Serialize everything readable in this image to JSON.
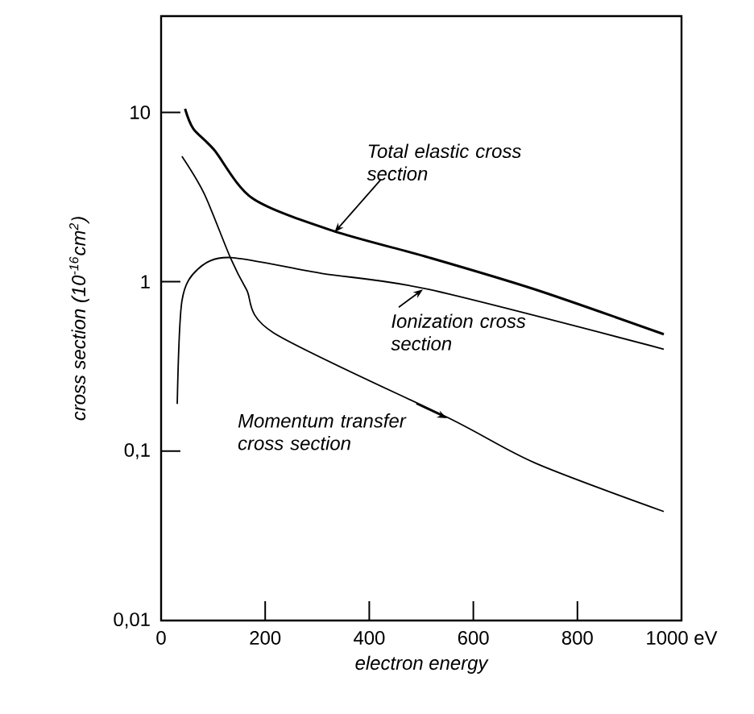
{
  "chart_data": {
    "type": "line",
    "log": "y",
    "xlabel": "electron energy",
    "ylabel": "cross section  (10$^{-16}$cm$^{2}$)",
    "xlim": [
      0,
      1000
    ],
    "ylim": [
      0.01,
      37
    ],
    "xticks": [
      0,
      200,
      400,
      600,
      800,
      {
        "value": 1000,
        "label": "1000 eV"
      }
    ],
    "yticks": [
      {
        "value": 0.01,
        "label": "0,01"
      },
      {
        "value": 0.1,
        "label": "0,1"
      },
      1,
      10
    ],
    "series": [
      {
        "color": "#000000",
        "x": [
          46,
          62,
          102,
          176,
          330,
          515,
          719,
          966
        ],
        "values": [
          10.5,
          8.0,
          6.0,
          3.1,
          2.0,
          1.39,
          0.9,
          0.49
        ]
      },
      {
        "color": "#000000",
        "x": [
          31,
          40,
          71,
          133,
          309,
          515,
          966
        ],
        "values": [
          0.19,
          0.77,
          1.19,
          1.39,
          1.12,
          0.9,
          0.4
        ]
      },
      {
        "color": "#000000",
        "x": [
          40,
          83,
          133,
          164,
          216,
          556,
          719,
          966
        ],
        "values": [
          5.5,
          3.3,
          1.39,
          0.9,
          0.5,
          0.155,
          0.085,
          0.044
        ]
      }
    ],
    "annotations": [
      {
        "text": "Total elastic cross section",
        "x": 330,
        "y": 2.0
      },
      {
        "text": "Ionization cross section",
        "x": 500,
        "y": 0.92
      },
      {
        "text": "Momentum transfer cross section",
        "x": 546,
        "y": 0.16
      }
    ]
  }
}
